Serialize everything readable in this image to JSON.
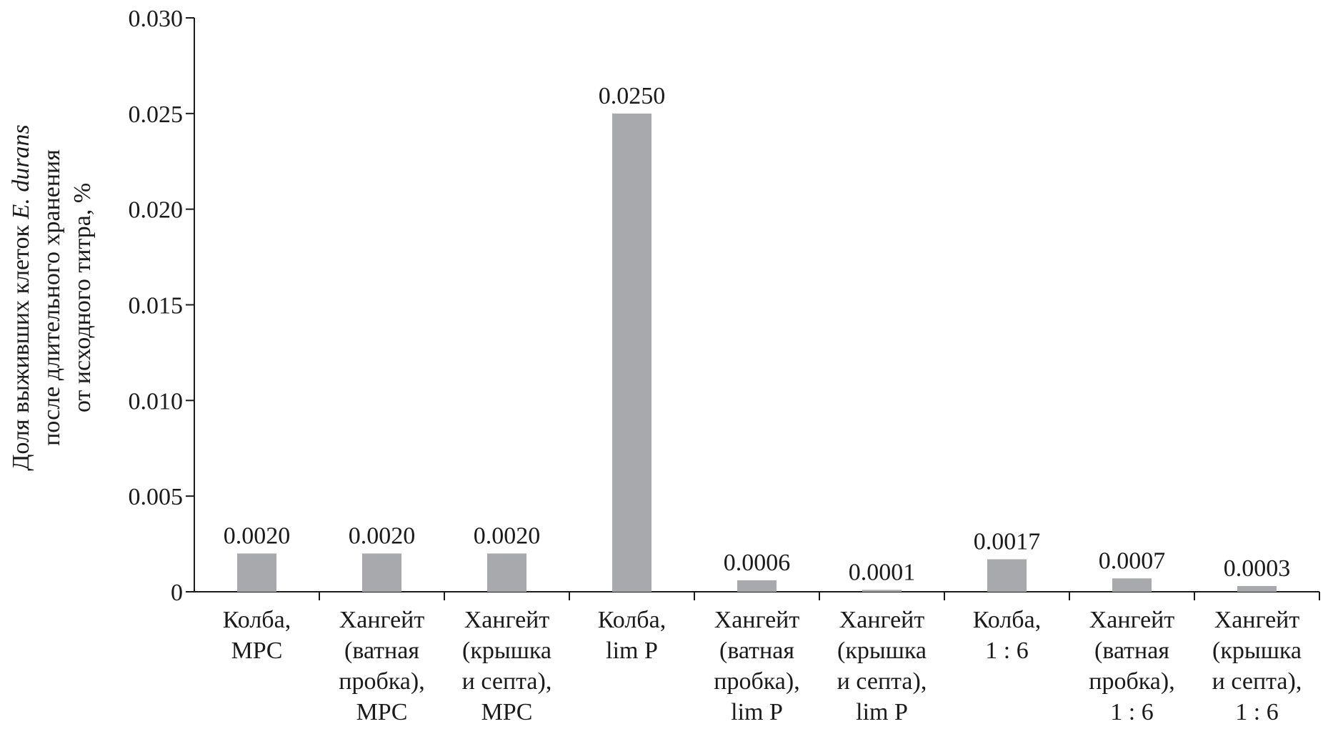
{
  "chart_data": {
    "type": "bar",
    "categories": [
      [
        "Колба,",
        "MPC"
      ],
      [
        "Хангейт",
        "(ватная",
        "пробка),",
        "MPC"
      ],
      [
        "Хангейт",
        "(крышка",
        "и септа),",
        "MPC"
      ],
      [
        "Колба,",
        "lim P"
      ],
      [
        "Хангейт",
        "(ватная",
        "пробка),",
        "lim P"
      ],
      [
        "Хангейт",
        "(крышка",
        "и септа),",
        "lim P"
      ],
      [
        "Колба,",
        "1 : 6"
      ],
      [
        "Хангейт",
        "(ватная",
        "пробка),",
        "1 : 6"
      ],
      [
        "Хангейт",
        "(крышка",
        "и септа),",
        "1 : 6"
      ]
    ],
    "values": [
      0.002,
      0.002,
      0.002,
      0.025,
      0.0006,
      0.0001,
      0.0017,
      0.0007,
      0.0003
    ],
    "value_labels": [
      "0.0020",
      "0.0020",
      "0.0020",
      "0.0250",
      "0.0006",
      "0.0001",
      "0.0017",
      "0.0007",
      "0.0003"
    ],
    "ylim": [
      0,
      0.03
    ],
    "yticks": [
      0,
      0.005,
      0.01,
      0.015,
      0.02,
      0.025,
      0.03
    ],
    "ytick_labels": [
      "0",
      "0.005",
      "0.010",
      "0.015",
      "0.020",
      "0.025",
      "0.030"
    ],
    "ylabel_lines": [
      {
        "parts": [
          {
            "text": "Доля выживших клеток ",
            "italic": false
          },
          {
            "text": "E. durans",
            "italic": true
          }
        ]
      },
      {
        "parts": [
          {
            "text": "после длительного хранения",
            "italic": false
          }
        ]
      },
      {
        "parts": [
          {
            "text": "от исходного титра, %",
            "italic": false
          }
        ]
      }
    ],
    "colors": {
      "bar": "#a7a9ac",
      "axis": "#1a1a1a"
    },
    "grid": false
  }
}
